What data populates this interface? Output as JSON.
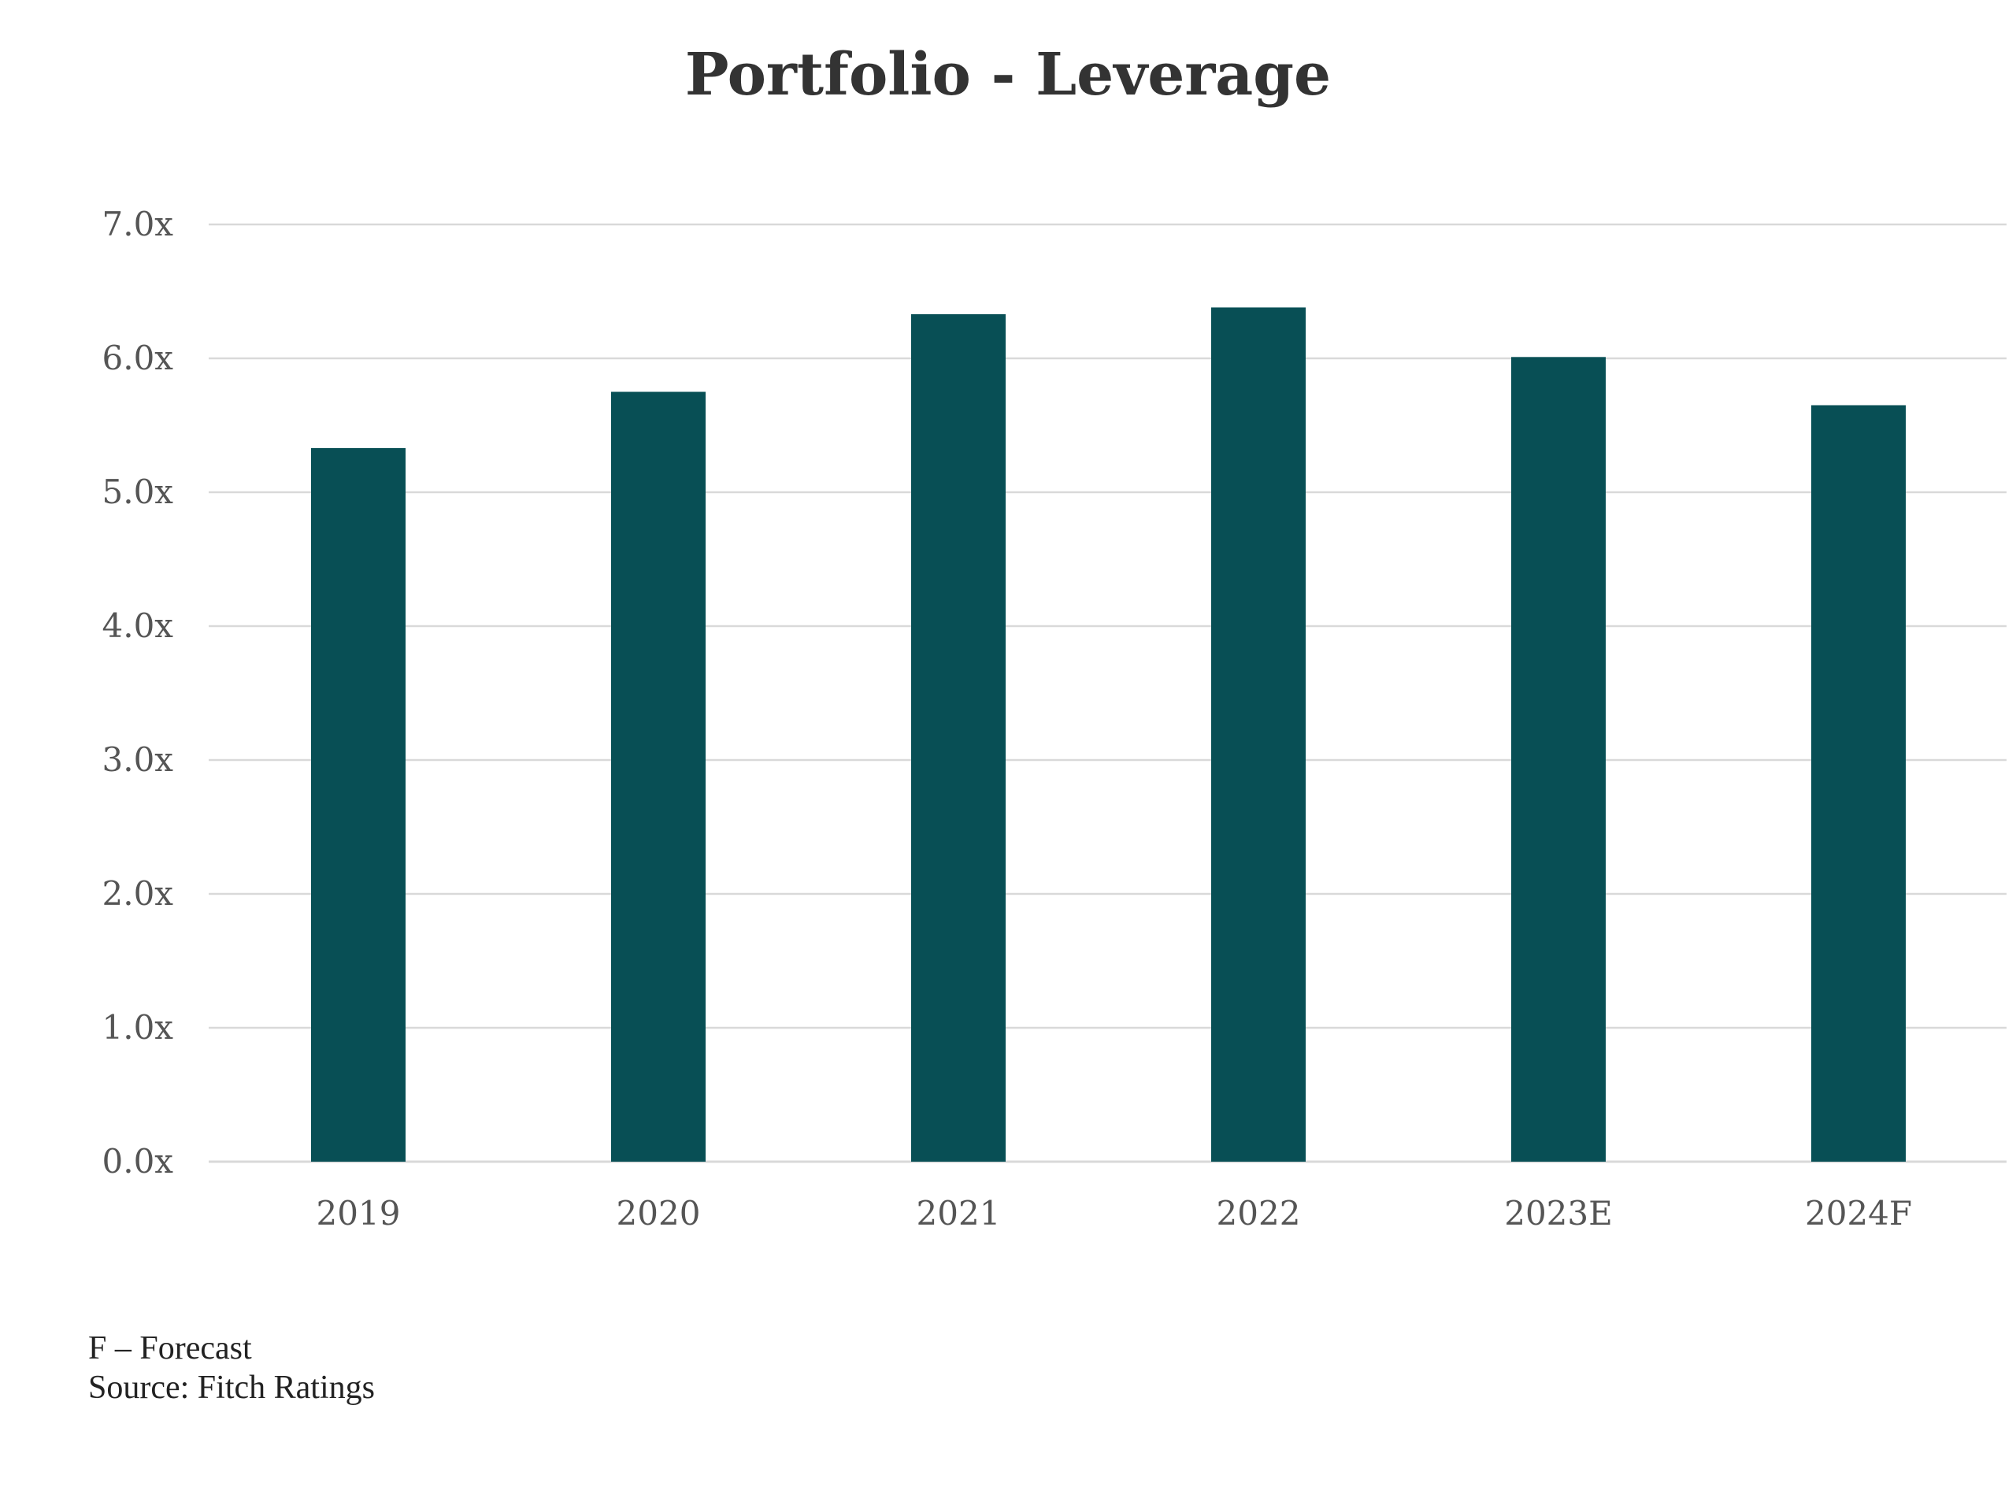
{
  "chart_data": {
    "type": "bar",
    "title": "Portfolio - Leverage",
    "categories": [
      "2019",
      "2020",
      "2021",
      "2022",
      "2023E",
      "2024F"
    ],
    "values": [
      5.33,
      5.75,
      6.33,
      6.38,
      6.01,
      5.65
    ],
    "ylim": [
      0,
      7
    ],
    "yticks": [
      0,
      1,
      2,
      3,
      4,
      5,
      6,
      7
    ],
    "ytick_labels": [
      "0.0x",
      "1.0x",
      "2.0x",
      "3.0x",
      "4.0x",
      "5.0x",
      "6.0x",
      "7.0x"
    ],
    "grid": true,
    "bar_color": "#084f55",
    "grid_color": "#d9d9d9"
  },
  "footnotes": {
    "forecast_note": "F – Forecast",
    "source": "Source: Fitch Ratings"
  }
}
